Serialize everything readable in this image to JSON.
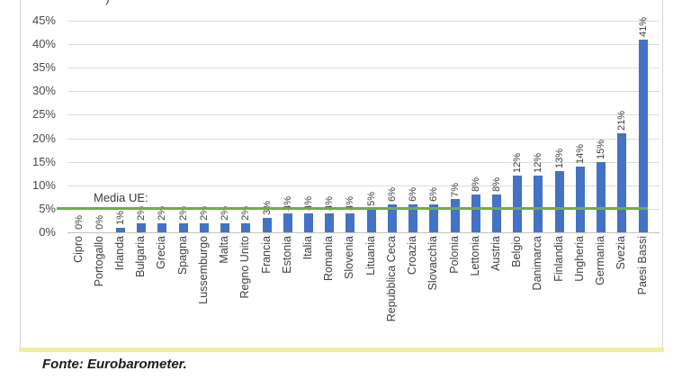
{
  "page": {
    "background": "#ffffff",
    "cropped_title_fragment": ")"
  },
  "chart_data": {
    "type": "bar",
    "title": "",
    "xlabel": "",
    "ylabel": "",
    "ylim": [
      0,
      45
    ],
    "grid": true,
    "legend": false,
    "bar_color": "#4472c4",
    "categories": [
      "Cipro",
      "Portogallo",
      "Irlanda",
      "Bulgaria",
      "Grecia",
      "Spagna",
      "Lussemburgo",
      "Malta",
      "Regno Unito",
      "Francia",
      "Estonia",
      "Italia",
      "Romania",
      "Slovenia",
      "Lituania",
      "Repubblica Ceca",
      "Croazia",
      "Slovacchia",
      "Polonia",
      "Lettonia",
      "Austria",
      "Belgio",
      "Danimarca",
      "Finlandia",
      "Ungheria",
      "Germania",
      "Svezia",
      "Paesi Bassi"
    ],
    "values": [
      0,
      0,
      1,
      2,
      2,
      2,
      2,
      2,
      2,
      3,
      4,
      4,
      4,
      4,
      5,
      6,
      6,
      6,
      7,
      8,
      8,
      12,
      12,
      13,
      14,
      15,
      21,
      41
    ],
    "value_labels": [
      "0%",
      "0%",
      "1%",
      "2%",
      "2%",
      "2%",
      "2%",
      "2%",
      "2%",
      "3%",
      "4%",
      "4%",
      "4%",
      "4%",
      "5%",
      "6%",
      "6%",
      "6%",
      "7%",
      "8%",
      "8%",
      "12%",
      "12%",
      "13%",
      "14%",
      "15%",
      "21%",
      "41%"
    ],
    "ytick_labels": [
      "0%",
      "5%",
      "10%",
      "15%",
      "20%",
      "25%",
      "30%",
      "35%",
      "40%",
      "45%"
    ],
    "reference_line": {
      "label": "Media UE:",
      "value": 5,
      "color": "#70ad47"
    }
  },
  "source_note": "Fonte: Eurobarometer.",
  "colors": {
    "bar": "#4472c4",
    "average_line": "#70ad47",
    "gridline": "#dcdcdc",
    "axis_line": "#c2c2c2",
    "frame_border": "#d6d6d6",
    "bottom_divider": "#efef9c",
    "label_text": "#3d3d3d"
  }
}
